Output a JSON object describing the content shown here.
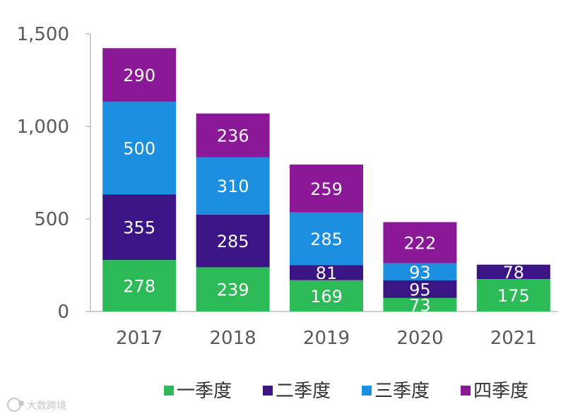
{
  "chart_data": {
    "type": "bar",
    "stacked": true,
    "categories": [
      "2017",
      "2018",
      "2019",
      "2020",
      "2021"
    ],
    "series": [
      {
        "name": "一季度",
        "color": "#2dbb58",
        "values": [
          278,
          239,
          169,
          73,
          175
        ]
      },
      {
        "name": "二季度",
        "color": "#3b1486",
        "values": [
          355,
          285,
          81,
          95,
          78
        ]
      },
      {
        "name": "三季度",
        "color": "#1c8fe0",
        "values": [
          500,
          310,
          285,
          93,
          null
        ]
      },
      {
        "name": "四季度",
        "color": "#8b1896",
        "values": [
          290,
          236,
          259,
          222,
          null
        ]
      }
    ],
    "y_ticks": [
      "0",
      "500",
      "1,000",
      "1,500"
    ],
    "y_tick_values": [
      0,
      500,
      1000,
      1500
    ],
    "ylim": [
      0,
      1500
    ],
    "legend_position": "bottom",
    "title": "",
    "xlabel": "",
    "ylabel": ""
  },
  "watermark": {
    "text": "大数跨境",
    "icon": "watermark-logo-icon"
  }
}
